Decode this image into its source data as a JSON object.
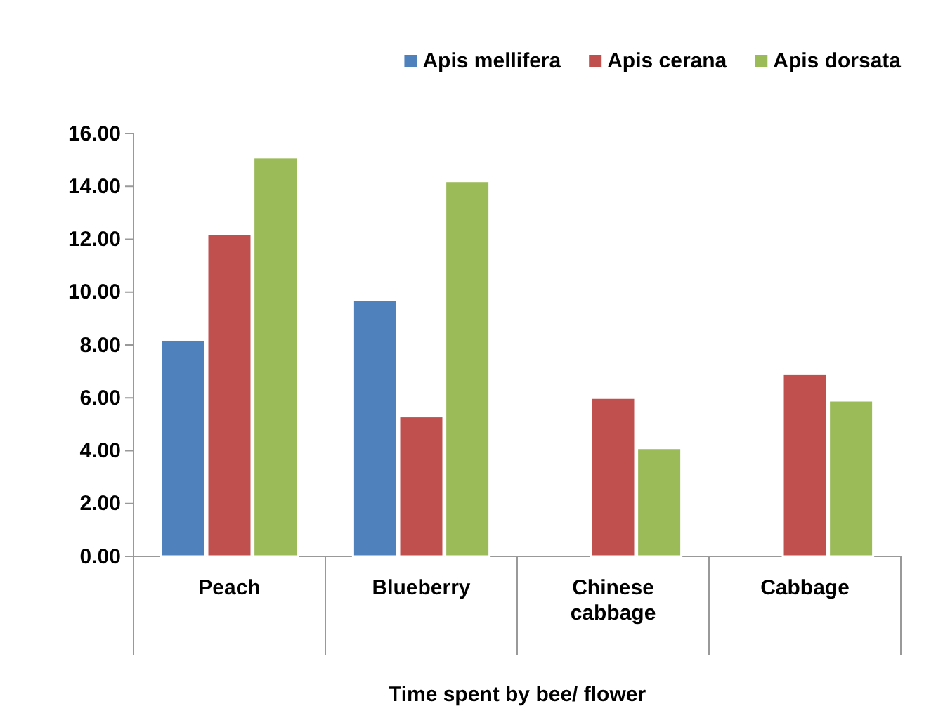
{
  "chart_data": {
    "type": "bar",
    "xlabel": "Time spent by bee/ flower",
    "categories": [
      "Peach",
      "Blueberry",
      "Chinese cabbage",
      "Cabbage"
    ],
    "series": [
      {
        "name": "Apis mellifera",
        "color": "#4f81bd",
        "values": [
          8.2,
          9.7,
          0,
          0
        ]
      },
      {
        "name": "Apis cerana",
        "color": "#c0504d",
        "values": [
          12.2,
          5.3,
          6.0,
          6.9
        ]
      },
      {
        "name": "Apis dorsata",
        "color": "#9bbb59",
        "values": [
          15.1,
          14.2,
          4.1,
          5.9
        ]
      }
    ],
    "ylim": [
      0,
      16
    ],
    "yticks": [
      {
        "value": 0,
        "label": "0.00"
      },
      {
        "value": 2,
        "label": "2.00"
      },
      {
        "value": 4,
        "label": "4.00"
      },
      {
        "value": 6,
        "label": "6.00"
      },
      {
        "value": 8,
        "label": "8.00"
      },
      {
        "value": 10,
        "label": "10.00"
      },
      {
        "value": 12,
        "label": "12.00"
      },
      {
        "value": 14,
        "label": "14.00"
      },
      {
        "value": 16,
        "label": "16.00"
      }
    ],
    "legend": "top right"
  }
}
